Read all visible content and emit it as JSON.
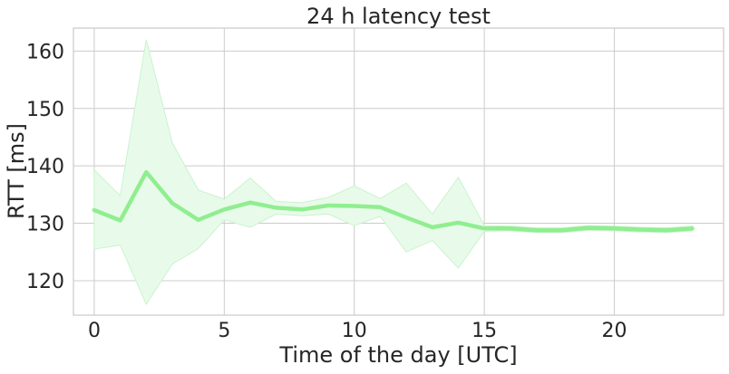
{
  "chart_data": {
    "type": "line",
    "title": "24 h latency test",
    "xlabel": "Time of the day [UTC]",
    "ylabel": "RTT [ms]",
    "xlim": [
      -0.8,
      24.2
    ],
    "ylim": [
      114,
      164
    ],
    "xticks": [
      0,
      5,
      10,
      15,
      20
    ],
    "yticks": [
      120,
      130,
      140,
      150,
      160
    ],
    "grid": true,
    "colors": {
      "line": "#90ee90",
      "band": "#e8fbea",
      "band_edge": "#c9f3cd",
      "grid": "#cccccc",
      "spine": "#cccccc"
    },
    "series": [
      {
        "x": [
          0,
          1,
          2,
          3,
          4,
          5,
          6,
          7,
          8,
          9,
          10,
          11,
          12,
          13,
          14,
          15,
          16,
          17,
          18,
          19,
          20,
          21,
          22,
          23
        ],
        "values": [
          132.3,
          130.5,
          138.9,
          133.5,
          130.6,
          132.4,
          133.6,
          132.7,
          132.4,
          133.1,
          133.0,
          132.8,
          131.0,
          129.3,
          130.1,
          129.1,
          129.1,
          128.8,
          128.8,
          129.2,
          129.1,
          128.9,
          128.8,
          129.1
        ],
        "upper": [
          139.3,
          134.8,
          162.0,
          144.0,
          135.8,
          134.2,
          137.9,
          133.8,
          133.6,
          134.5,
          136.5,
          134.3,
          137.0,
          131.6,
          138.0,
          129.6,
          129.5,
          129.2,
          129.2,
          129.6,
          129.5,
          129.3,
          129.2,
          129.5
        ],
        "lower": [
          125.5,
          126.2,
          115.9,
          122.9,
          125.6,
          130.6,
          129.3,
          131.6,
          131.3,
          131.6,
          129.6,
          131.2,
          125.0,
          127.0,
          122.2,
          128.6,
          128.7,
          128.4,
          128.4,
          128.8,
          128.7,
          128.5,
          128.4,
          128.7
        ]
      }
    ]
  }
}
